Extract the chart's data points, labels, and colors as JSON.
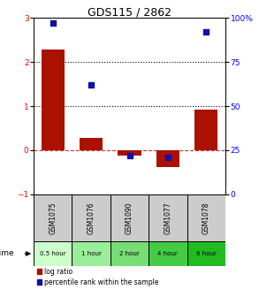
{
  "title": "GDS115 / 2862",
  "samples": [
    "GSM1075",
    "GSM1076",
    "GSM1090",
    "GSM1077",
    "GSM1078"
  ],
  "time_labels": [
    "0.5 hour",
    "1 hour",
    "2 hour",
    "4 hour",
    "6 hour"
  ],
  "time_colors": [
    "#ccffcc",
    "#99ee99",
    "#77dd77",
    "#44cc44",
    "#22bb22"
  ],
  "log_ratios": [
    2.28,
    0.27,
    -0.12,
    -0.38,
    0.93
  ],
  "percentile_ranks": [
    97,
    62,
    22,
    21,
    92
  ],
  "bar_color": "#aa1100",
  "dot_color": "#1111aa",
  "ylim_left": [
    -1,
    3
  ],
  "ylim_right": [
    0,
    100
  ],
  "yticks_left": [
    -1,
    0,
    1,
    2,
    3
  ],
  "yticks_right": [
    0,
    25,
    50,
    75,
    100
  ],
  "hline_y": [
    1,
    2
  ],
  "zero_line_color": "#cc3333",
  "background_color": "#ffffff",
  "header_bg": "#cccccc"
}
